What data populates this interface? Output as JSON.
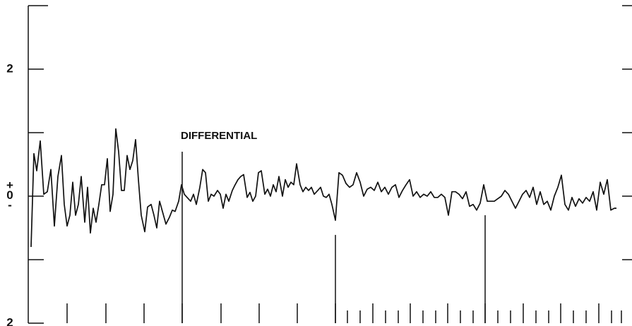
{
  "chart_data": {
    "type": "line",
    "annotation": "DIFFERENTIAL",
    "xlim": [
      0,
      855
    ],
    "ylim": [
      -2,
      3
    ],
    "yticks": [
      {
        "value": 3,
        "label": null
      },
      {
        "value": 2,
        "label": "2"
      },
      {
        "value": 1,
        "label": null
      },
      {
        "value": 0,
        "label": "+0-"
      },
      {
        "value": -1,
        "label": null
      },
      {
        "value": -2,
        "label": "2"
      }
    ],
    "xticks": [
      55,
      110,
      164,
      218,
      273,
      327,
      381,
      435,
      452,
      470,
      488,
      506,
      524,
      541,
      559,
      577,
      594,
      612,
      630,
      647,
      665,
      683,
      701,
      719,
      737,
      754,
      772,
      790,
      808,
      826,
      840
    ],
    "markers": [
      {
        "x": 218,
        "top": 0.7
      },
      {
        "x": 435,
        "top": -0.61
      },
      {
        "x": 647,
        "top": -0.3
      }
    ],
    "x": [
      4,
      8,
      12,
      17,
      22,
      27,
      32,
      37,
      42,
      47,
      51,
      55,
      59,
      63,
      67,
      71,
      75,
      80,
      84,
      88,
      92,
      96,
      100,
      104,
      108,
      112,
      116,
      120,
      124,
      128,
      132,
      136,
      140,
      144,
      148,
      152,
      156,
      160,
      165,
      169,
      174,
      178,
      182,
      186,
      190,
      195,
      200,
      204,
      208,
      213,
      217,
      221,
      225,
      230,
      234,
      238,
      243,
      247,
      251,
      255,
      259,
      263,
      268,
      272,
      276,
      280,
      284,
      289,
      293,
      297,
      301,
      305,
      310,
      314,
      318,
      322,
      326,
      330,
      335,
      339,
      343,
      347,
      351,
      355,
      360,
      364,
      368,
      372,
      376,
      380,
      385,
      389,
      393,
      397,
      401,
      405,
      410,
      414,
      418,
      422,
      426,
      430,
      435,
      440,
      445,
      450,
      455,
      460,
      465,
      470,
      475,
      480,
      485,
      490,
      495,
      500,
      505,
      510,
      515,
      520,
      525,
      530,
      535,
      540,
      545,
      550,
      555,
      560,
      565,
      570,
      575,
      580,
      585,
      590,
      595,
      600,
      605,
      610,
      615,
      620,
      625,
      630,
      635,
      640,
      645,
      650,
      655,
      660,
      665,
      670,
      675,
      680,
      685,
      690,
      695,
      700,
      705,
      710,
      715,
      720,
      725,
      730,
      735,
      740,
      745,
      750,
      755,
      760,
      765,
      770,
      775,
      780,
      785,
      790,
      795,
      800,
      805,
      810,
      815,
      820,
      825,
      830,
      833
    ],
    "series": [
      {
        "color": "#111111",
        "values": [
          -0.8,
          0.67,
          0.4,
          0.87,
          0.03,
          0.07,
          0.42,
          -0.47,
          0.31,
          0.64,
          -0.13,
          -0.47,
          -0.3,
          0.22,
          -0.3,
          -0.13,
          0.31,
          -0.41,
          0.14,
          -0.58,
          -0.19,
          -0.41,
          -0.13,
          0.18,
          0.18,
          0.59,
          -0.24,
          0.03,
          1.06,
          0.7,
          0.09,
          0.09,
          0.64,
          0.42,
          0.56,
          0.89,
          0.26,
          -0.3,
          -0.56,
          -0.17,
          -0.13,
          -0.3,
          -0.5,
          -0.08,
          -0.24,
          -0.44,
          -0.33,
          -0.22,
          -0.24,
          -0.08,
          0.18,
          0.03,
          -0.02,
          -0.08,
          0.03,
          -0.13,
          0.14,
          0.42,
          0.37,
          -0.08,
          0.03,
          0,
          0.09,
          0.03,
          -0.19,
          0.03,
          -0.08,
          0.09,
          0.18,
          0.26,
          0.31,
          0.34,
          -0.02,
          0.06,
          -0.08,
          0,
          0.37,
          0.4,
          0.03,
          0.11,
          0,
          0.18,
          0.07,
          0.31,
          0,
          0.26,
          0.14,
          0.22,
          0.18,
          0.51,
          0.18,
          0.07,
          0.14,
          0.09,
          0.14,
          0.03,
          0.09,
          0.14,
          0,
          -0.02,
          0.03,
          -0.13,
          -0.38,
          0.37,
          0.33,
          0.2,
          0.14,
          0.18,
          0.37,
          0.22,
          0,
          0.11,
          0.14,
          0.09,
          0.22,
          0.07,
          0.14,
          0.03,
          0.14,
          0.18,
          -0.02,
          0.09,
          0.18,
          0.26,
          0,
          0.07,
          -0.02,
          0.03,
          0,
          0.07,
          -0.02,
          -0.02,
          0.03,
          -0.02,
          -0.3,
          0.07,
          0.07,
          0.03,
          -0.04,
          0.07,
          -0.16,
          -0.13,
          -0.22,
          -0.11,
          0.18,
          -0.08,
          -0.08,
          -0.08,
          -0.04,
          0,
          0.09,
          0.03,
          -0.08,
          -0.19,
          -0.08,
          0.03,
          0.09,
          -0.02,
          0.14,
          -0.13,
          0.07,
          -0.13,
          -0.08,
          -0.22,
          0,
          0.14,
          0.33,
          -0.13,
          -0.22,
          -0.02,
          -0.16,
          -0.04,
          -0.11,
          -0.02,
          -0.08,
          0.07,
          -0.22,
          0.22,
          0.03,
          0.26,
          -0.22,
          -0.19,
          -0.19
        ]
      }
    ]
  }
}
